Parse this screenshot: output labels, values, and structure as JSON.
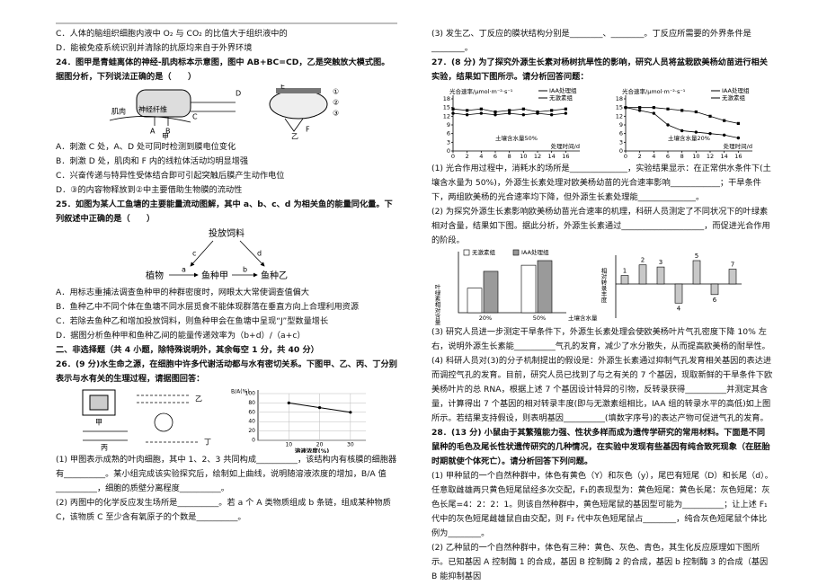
{
  "left": [
    "C．人体的脑组织细胞内液中 O₂ 与 CO₂ 的比值大于组织液中的",
    "D．能被免疫系统识别并清除的抗原均来自于外界环境",
    "24．图甲是青蛙离体的神经-肌肉标本示意图，图中 AB+BC=CD，乙是突触放大模式图。据图分析，下列说法正确的是（　　）",
    "A．刺激 C 处，A、D 处可同时检测到膜电位变化",
    "B．刺激 D 处，肌肉和 F 内的线粒体活动均明显增强",
    "C．兴奋传递与特异性受体结合即可引起突触后膜产生动作电位",
    "D．③的内容物释放到②中主要借助生物膜的流动性",
    "25．如图为某人工鱼塘的主要能量流动图解，其中 a、b、c、d 为相关鱼的能量同化量。下列叙述中正确的是（　　）",
    "A．用标志重捕法调查鱼种甲的种群密度时，网眼太大常使调查值偏大",
    "B．鱼种乙中不同个体在鱼塘不同水层觅食不能体现群落在垂直方向上合理利用资源",
    "C．若除去鱼种乙和增加投放饲料，则鱼种甲会在鱼塘中呈现“J”型数量增长",
    "D．据图分析鱼种甲和鱼种乙间的能量传递效率为（b+d）/（a+c）",
    "二、非选择题（共 4 小题，除特殊说明外，其余每空 1 分，共 40 分）",
    "26．(9 分)水生命之源，在细胞中许多代谢活动都与水有密切关系。下图甲、乙、丙、丁分别表示与水有关的生理过程，请据图回答：",
    "(1) 甲图表示成熟的叶肉细胞，其中 1、2、3 共同构成__________，该结构内有核膜的细胞器有__________。某小组完成该实验探究后，绘制如上曲线，说明随溶液浓度的增加，B/A 值__________，细胞的质壁分离程度__________。",
    "(2) 丙图中的化学反应发生场所是__________。若 a 个 A 类物质组成 b 条链，组成某种物质 C，该物质 C 至少含有氧原子的个数是__________。"
  ],
  "right": [
    "(3) 发生乙、丁反应的膜状结构分别是________、________。丁反应所需要的外界条件是________。",
    "27．(8 分) 为了探究外源生长素对杨树抗旱性的影响，研究人员将盆栽欧美杨幼苗进行相关实验，结果如下图所示。请分析回答问题：",
    "(1) 光合作用过程中，消耗水的场所是______________，实验结果显示：在正常供水条件下(土壤含水量为 50%)，外源生长素处理对欧美杨幼苗的光合速率影响____________；干旱条件下，两组欧美杨的光合速率均下降，但外源生长素处理能______________。",
    "(2) 为探究外源生长素影响欧美杨幼苗光合速率的机理，科研人员测定了不同状况下的叶绿素相对含量，结果如下图。据此分析，外源生长素通过____________________，而促进光合作用的阶段。",
    "(3) 研究人员进一步测定干旱条件下，外源生长素处理会使欧美杨叶片气孔密度下降 10% 左右，说明外源生长素能__________气孔的发育，减少了水分散失，从而提高欧美杨的耐旱性。",
    "(4) 科研人员对(3)的分子机制提出的假设是：外源生长素通过抑制气孔发育相关基因的表达进而调控气孔的发育。目前，研究人员已找到了与之有关的 7 个基因，现取新鲜的干旱条件下欧美杨叶片的总 RNA，根据上述 7 个基因设计特异的引物，反转录获得__________并测定其含量，计算得出 7 个基因的相对转录丰度(即与无激素组相比，IAA 组的转录水平的高低)如上图所示。若结果支持假设，则表明基因__________(填数字序号)的表达产物可促进气孔的发育。",
    "28．(13 分) 小鼠由于其繁殖能力强、性状多样而成为遗传学研究的常用材料。下面是不同鼠种的毛色及尾长性状遗传研究的几种情况，在实验中发现有些基因有纯合致死现象（在胚胎时期就使个体死亡）。请分析回答下列问题。",
    "(1) 甲种鼠的一个自然种群中，体色有黄色（Y）和灰色（y），尾巴有短尾（D）和长尾（d）。任意取雌雄两只黄色短尾鼠经多次交配，F₁的表现型为：黄色短尾：黄色长尾：灰色短尾：灰色长尾=4：2：2：1。则该自然种群中，黄色短尾鼠的基因型可能为__________；让上述 F₁ 代中的灰色短尾雌雄鼠自由交配，则 F₂ 代中灰色短尾鼠占________，纯合灰色短尾鼠个体比例为________。",
    "(2) 乙种鼠的一个自然种群中，体色有三种：黄色、灰色、青色，其生化反应原理如下图所示。已知基因 A 控制酶 1 的合成，基因 B 控制酶 2 的合成，基因 b 控制酶 3 的合成（基因 B 能抑制基因"
  ],
  "fig24": [
    "D",
    "神经纤维",
    "肌肉",
    "A",
    "B",
    "C",
    "甲",
    "E",
    "F",
    "①",
    "②",
    "③",
    "乙"
  ],
  "fig25": [
    "投放饲料",
    "c",
    "d",
    "植物",
    "a",
    "鱼种甲",
    "b",
    "鱼种乙"
  ],
  "fig26": {
    "labels": [
      "甲",
      "乙",
      "丙",
      "丁"
    ],
    "chart": {
      "x": [
        10,
        20,
        30
      ],
      "values": [
        80,
        70,
        60
      ],
      "xlim": [
        0,
        35
      ],
      "ylim": [
        0,
        100
      ],
      "xticks": [
        10,
        20,
        30
      ],
      "yticks": [
        0,
        20,
        40,
        60,
        80,
        100
      ],
      "ylabel": "B/A(%)",
      "xlabel": "溶液浓度(%)"
    }
  },
  "fig27": [
    {
      "ylabel": "光合速率/μmol·m⁻²·s⁻¹",
      "xlabel": "处理时间/d",
      "annotation": "土壤含水量50%",
      "x": [
        0,
        2,
        4,
        6,
        8,
        10,
        12,
        14,
        16
      ],
      "xlim": [
        0,
        18
      ],
      "ylim": [
        0,
        18
      ],
      "xticks": [
        0,
        2,
        4,
        6,
        8,
        10,
        12,
        14,
        16
      ],
      "yticks": [
        0,
        3,
        6,
        9,
        12,
        15,
        18
      ],
      "series": [
        {
          "name": "IAA处理组",
          "color": "#000000",
          "values": [
            14.5,
            14,
            14.5,
            13.5,
            14,
            14.5,
            13.5,
            14,
            14.5
          ]
        },
        {
          "name": "无激素组",
          "color": "#000000",
          "values": [
            13,
            12.5,
            13,
            12.5,
            13,
            12.5,
            13,
            12.5,
            13
          ]
        }
      ]
    },
    {
      "ylabel": "光合速率/μmol·m⁻²·s⁻¹",
      "xlabel": "处理时间/d",
      "annotation": "土壤含水量20%",
      "x": [
        0,
        2,
        4,
        6,
        8,
        10,
        12,
        14,
        16
      ],
      "xlim": [
        0,
        18
      ],
      "ylim": [
        0,
        18
      ],
      "xticks": [
        0,
        2,
        4,
        6,
        8,
        10,
        12,
        14,
        16
      ],
      "yticks": [
        0,
        3,
        6,
        9,
        12,
        15,
        18
      ],
      "series": [
        {
          "name": "IAA处理组",
          "color": "#000000",
          "values": [
            15,
            15,
            15,
            14.5,
            14,
            13.5,
            12,
            10.5,
            9.5
          ]
        },
        {
          "name": "无激素组",
          "color": "#000000",
          "values": [
            15,
            14,
            13,
            9,
            7,
            6.5,
            6,
            5.5,
            4.5
          ]
        }
      ]
    }
  ],
  "fig27b": [
    {
      "ylabel": "叶绿素相对含量",
      "xlabel": "土壤含水量",
      "categories": [
        "20%",
        "50%"
      ],
      "series": [
        {
          "name": "无激素组",
          "color": "#ffffff",
          "values": [
            8,
            15.5
          ]
        },
        {
          "name": "IAA处理组",
          "color": "#9a9a9a",
          "values": [
            13.5,
            17
          ]
        }
      ]
    },
    {
      "ylabel": "相对转录丰度",
      "categories": [
        "1",
        "2",
        "3",
        "4",
        "5",
        "6",
        "7"
      ],
      "color": "#c8c8c8",
      "values": [
        2,
        4.5,
        4,
        -4.5,
        5.5,
        -2.5,
        3.5
      ]
    }
  ]
}
